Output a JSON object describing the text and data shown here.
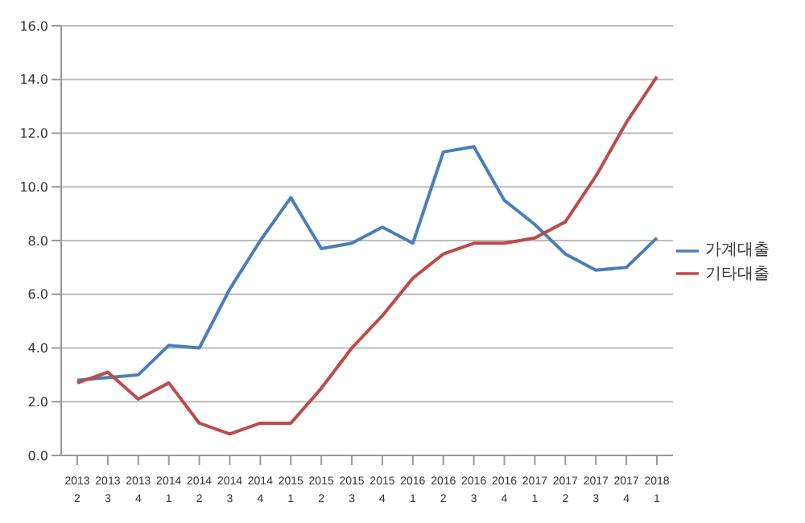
{
  "chart_data": {
    "type": "line",
    "categories": [
      "2013\n2",
      "2013\n3",
      "2013\n4",
      "2014\n1",
      "2014\n2",
      "2014\n3",
      "2014\n4",
      "2015\n1",
      "2015\n2",
      "2015\n3",
      "2015\n4",
      "2016\n1",
      "2016\n2",
      "2016\n3",
      "2016\n4",
      "2017\n1",
      "2017\n2",
      "2017\n3",
      "2017\n4",
      "2018\n1"
    ],
    "series": [
      {
        "name": "가계대출",
        "color": "#4a7ebb",
        "values": [
          2.8,
          2.9,
          3.0,
          4.1,
          4.0,
          6.2,
          8.0,
          9.6,
          7.7,
          7.9,
          8.5,
          7.9,
          11.3,
          11.5,
          9.5,
          8.6,
          7.5,
          6.9,
          7.0,
          8.1
        ]
      },
      {
        "name": "기타대출",
        "color": "#be4b48",
        "values": [
          2.7,
          3.1,
          2.1,
          2.7,
          1.2,
          0.8,
          1.2,
          1.2,
          2.5,
          4.0,
          5.2,
          6.6,
          7.5,
          7.9,
          7.9,
          8.1,
          8.7,
          10.4,
          12.4,
          14.1
        ]
      }
    ],
    "ylim": [
      0,
      16
    ],
    "yticks": [
      {
        "value": 0,
        "label": "0.0"
      },
      {
        "value": 2,
        "label": "2.0"
      },
      {
        "value": 4,
        "label": "4.0"
      },
      {
        "value": 6,
        "label": "6.0"
      },
      {
        "value": 8,
        "label": "8.0"
      },
      {
        "value": 10,
        "label": "10.0"
      },
      {
        "value": 12,
        "label": "12.0"
      },
      {
        "value": 14,
        "label": "14.0"
      },
      {
        "value": 16,
        "label": "16.0"
      }
    ],
    "grid": "y",
    "legend": "right",
    "marker": "none",
    "line_style": "solid"
  }
}
